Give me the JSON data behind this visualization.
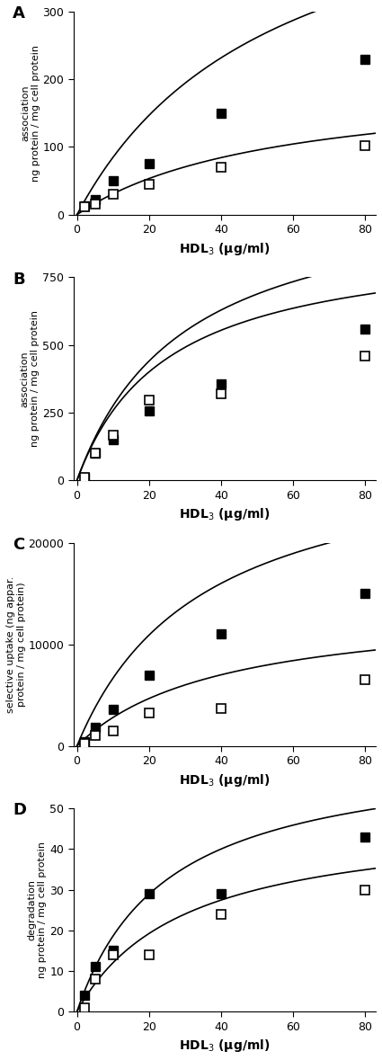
{
  "panel_A": {
    "label": "A",
    "ylabel_line1": "association",
    "ylabel_line2": "ng protein / mg cell protein",
    "xlabel": "HDL$_3$ (μg/ml)",
    "xlim": [
      -1,
      83
    ],
    "ylim": [
      0,
      300
    ],
    "yticks": [
      0,
      100,
      200,
      300
    ],
    "xticks": [
      0,
      20,
      40,
      60,
      80
    ],
    "filled": {
      "x": [
        2,
        5,
        10,
        20,
        40,
        80
      ],
      "y": [
        13,
        22,
        50,
        75,
        150,
        230
      ]
    },
    "open": {
      "x": [
        2,
        5,
        10,
        20,
        40,
        80
      ],
      "y": [
        12,
        15,
        30,
        45,
        70,
        102
      ]
    },
    "curve_filled": {
      "vmax": 550,
      "km": 55
    },
    "curve_open": {
      "vmax": 200,
      "km": 55
    }
  },
  "panel_B": {
    "label": "B",
    "ylabel_line1": "association",
    "ylabel_line2": "ng protein / mg cell protein",
    "xlabel": "HDL$_3$ (μg/ml)",
    "xlim": [
      -1,
      83
    ],
    "ylim": [
      0,
      750
    ],
    "yticks": [
      0,
      250,
      500,
      750
    ],
    "xticks": [
      0,
      20,
      40,
      60,
      80
    ],
    "filled": {
      "x": [
        2,
        5,
        10,
        20,
        40,
        80
      ],
      "y": [
        10,
        100,
        150,
        255,
        355,
        560
      ]
    },
    "open": {
      "x": [
        2,
        5,
        10,
        20,
        40,
        80
      ],
      "y": [
        10,
        100,
        165,
        295,
        320,
        460
      ]
    },
    "curve_filled": {
      "vmax": 1100,
      "km": 30
    },
    "curve_open": {
      "vmax": 900,
      "km": 25
    }
  },
  "panel_C": {
    "label": "C",
    "ylabel_line1": "selective uptake (ng appar.",
    "ylabel_line2": "protein / mg cell protein)",
    "xlabel": "HDL$_3$ (μg/ml)",
    "xlim": [
      -1,
      83
    ],
    "ylim": [
      0,
      20000
    ],
    "yticks": [
      0,
      10000,
      20000
    ],
    "xticks": [
      0,
      20,
      40,
      60,
      80
    ],
    "filled": {
      "x": [
        2,
        5,
        10,
        20,
        40,
        80
      ],
      "y": [
        400,
        1800,
        3600,
        7000,
        11000,
        15000
      ]
    },
    "open": {
      "x": [
        2,
        5,
        10,
        20,
        40,
        80
      ],
      "y": [
        200,
        1000,
        1500,
        3200,
        3700,
        6500
      ]
    },
    "curve_filled": {
      "vmax": 30000,
      "km": 35
    },
    "curve_open": {
      "vmax": 14000,
      "km": 40
    }
  },
  "panel_D": {
    "label": "D",
    "ylabel_line1": "degradation",
    "ylabel_line2": "ng protein / mg cell protein",
    "xlabel": "HDL$_3$ (μg/ml)",
    "xlim": [
      -1,
      83
    ],
    "ylim": [
      0,
      50
    ],
    "yticks": [
      0,
      10,
      20,
      30,
      40,
      50
    ],
    "xticks": [
      0,
      20,
      40,
      60,
      80
    ],
    "filled": {
      "x": [
        2,
        5,
        10,
        20,
        40,
        80
      ],
      "y": [
        4,
        11,
        15,
        29,
        29,
        43
      ]
    },
    "open": {
      "x": [
        2,
        5,
        10,
        20,
        40,
        80
      ],
      "y": [
        1,
        8,
        14,
        14,
        24,
        30
      ]
    },
    "curve_filled": {
      "vmax": 65,
      "km": 25
    },
    "curve_open": {
      "vmax": 48,
      "km": 30
    }
  },
  "marker_size": 6.5,
  "line_color": "#000000",
  "bg_color": "#ffffff"
}
